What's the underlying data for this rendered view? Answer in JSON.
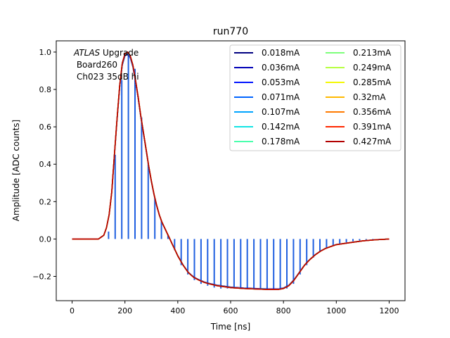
{
  "chart_data": {
    "type": "line",
    "title": "run770",
    "xlabel": "Time [ns]",
    "ylabel": "Amplitude [ADC counts]",
    "xlim": [
      -60,
      1260
    ],
    "ylim": [
      -0.33,
      1.06
    ],
    "xticks": [
      0,
      200,
      400,
      600,
      800,
      1000,
      1200
    ],
    "yticks": [
      -0.2,
      0.0,
      0.2,
      0.4,
      0.6,
      0.8,
      1.0
    ],
    "grid": false,
    "legend_position": "top-right",
    "annotation": {
      "italic": "ATLAS",
      "line1_rest": " Upgrade",
      "line2": " Board260",
      "line3": "Ch023 35dB hi"
    },
    "stems": {
      "color": "#1f5fe0",
      "x": [
        138,
        163,
        188,
        213,
        238,
        263,
        288,
        313,
        338,
        363,
        388,
        413,
        438,
        463,
        488,
        513,
        538,
        563,
        588,
        613,
        638,
        663,
        688,
        713,
        738,
        763,
        788,
        813,
        838,
        863,
        888,
        913,
        938,
        963,
        988,
        1013,
        1038,
        1063,
        1088,
        1113,
        1138
      ],
      "y": [
        0.04,
        0.45,
        0.85,
        1.0,
        0.91,
        0.65,
        0.41,
        0.22,
        0.1,
        0.02,
        -0.06,
        -0.14,
        -0.19,
        -0.22,
        -0.24,
        -0.25,
        -0.26,
        -0.265,
        -0.265,
        -0.265,
        -0.265,
        -0.265,
        -0.265,
        -0.27,
        -0.27,
        -0.27,
        -0.27,
        -0.265,
        -0.24,
        -0.19,
        -0.14,
        -0.1,
        -0.07,
        -0.05,
        -0.035,
        -0.025,
        -0.018,
        -0.012,
        -0.008,
        -0.005,
        -0.003
      ]
    },
    "pulse_x": [
      0,
      100,
      110,
      120,
      130,
      140,
      150,
      160,
      170,
      180,
      190,
      200,
      210,
      220,
      230,
      240,
      250,
      260,
      270,
      280,
      290,
      300,
      310,
      320,
      330,
      340,
      350,
      360,
      370,
      380,
      390,
      400,
      420,
      440,
      460,
      480,
      500,
      520,
      550,
      600,
      650,
      700,
      750,
      780,
      800,
      820,
      840,
      860,
      880,
      900,
      920,
      940,
      960,
      980,
      1000,
      1050,
      1100,
      1150,
      1200
    ],
    "pulse_y": [
      0.0,
      0.0,
      0.01,
      0.02,
      0.06,
      0.13,
      0.25,
      0.45,
      0.64,
      0.82,
      0.94,
      0.99,
      1.0,
      0.98,
      0.93,
      0.85,
      0.76,
      0.66,
      0.57,
      0.48,
      0.39,
      0.31,
      0.24,
      0.18,
      0.13,
      0.09,
      0.06,
      0.03,
      0.0,
      -0.03,
      -0.06,
      -0.09,
      -0.14,
      -0.18,
      -0.205,
      -0.22,
      -0.232,
      -0.24,
      -0.25,
      -0.26,
      -0.265,
      -0.268,
      -0.27,
      -0.27,
      -0.265,
      -0.25,
      -0.22,
      -0.18,
      -0.14,
      -0.11,
      -0.085,
      -0.065,
      -0.05,
      -0.04,
      -0.03,
      -0.02,
      -0.01,
      -0.004,
      0.0
    ],
    "series": [
      {
        "name": "0.018mA",
        "color": "#000080",
        "scale": 0.99
      },
      {
        "name": "0.036mA",
        "color": "#0000b7",
        "scale": 0.992
      },
      {
        "name": "0.053mA",
        "color": "#0014ff",
        "scale": 0.994
      },
      {
        "name": "0.071mA",
        "color": "#0064ff",
        "scale": 0.996
      },
      {
        "name": "0.107mA",
        "color": "#00a4ff",
        "scale": 0.997
      },
      {
        "name": "0.142mA",
        "color": "#13e4e4",
        "scale": 0.998
      },
      {
        "name": "0.178mA",
        "color": "#4affad",
        "scale": 0.999
      },
      {
        "name": "0.213mA",
        "color": "#7dff7a",
        "scale": 1.0
      },
      {
        "name": "0.249mA",
        "color": "#b7ff40",
        "scale": 1.0
      },
      {
        "name": "0.285mA",
        "color": "#f4f802",
        "scale": 1.0
      },
      {
        "name": "0.32mA",
        "color": "#ffb900",
        "scale": 1.0
      },
      {
        "name": "0.356mA",
        "color": "#ff7a00",
        "scale": 1.0
      },
      {
        "name": "0.391mA",
        "color": "#ff2800",
        "scale": 1.0
      },
      {
        "name": "0.427mA",
        "color": "#b20000",
        "scale": 1.0
      }
    ]
  }
}
